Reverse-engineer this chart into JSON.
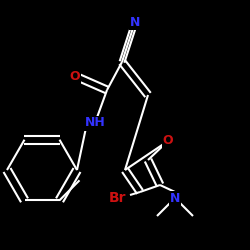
{
  "background": "#000000",
  "bond_color": "#ffffff",
  "bond_width": 1.5,
  "figsize": [
    2.5,
    2.5
  ],
  "dpi": 100,
  "atom_colors": {
    "N": "#3333ff",
    "O": "#cc1111",
    "Br": "#cc1111",
    "NH": "#3333ff"
  }
}
